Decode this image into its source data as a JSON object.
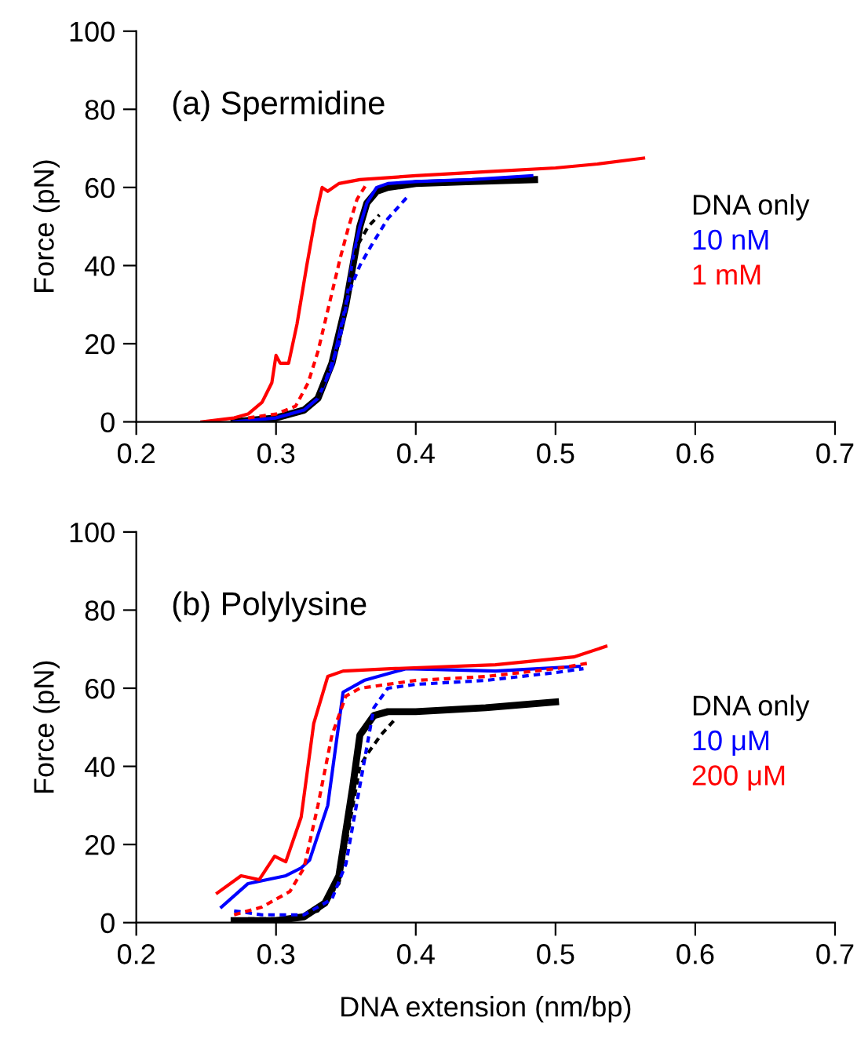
{
  "chart_data": [
    {
      "type": "line",
      "title": "(a) Spermidine",
      "ylabel": "Force (pN)",
      "xlim": [
        0.2,
        0.7
      ],
      "xticks": [
        0.2,
        0.3,
        0.4,
        0.5,
        0.6,
        0.7
      ],
      "ylim": [
        0,
        100
      ],
      "yticks": [
        0,
        20,
        40,
        60,
        80,
        100
      ],
      "legend": "right",
      "grid": false,
      "series": [
        {
          "name": "DNA only",
          "color": "#000000",
          "line_style": "solid",
          "x": [
            0.27,
            0.3,
            0.32,
            0.33,
            0.34,
            0.35,
            0.355,
            0.36,
            0.365,
            0.372,
            0.38,
            0.4,
            0.44,
            0.485
          ],
          "values": [
            0,
            1,
            3,
            6,
            15,
            30,
            40,
            50,
            56,
            59,
            60,
            61,
            61.5,
            62
          ]
        },
        {
          "name": "10 nM",
          "color": "#0000ff",
          "line_style": "solid",
          "x": [
            0.27,
            0.3,
            0.32,
            0.33,
            0.34,
            0.35,
            0.355,
            0.36,
            0.365,
            0.372,
            0.38,
            0.4,
            0.44,
            0.483
          ],
          "values": [
            0,
            1,
            3,
            6,
            14,
            30,
            42,
            50,
            56,
            60,
            61,
            61.5,
            62,
            63
          ]
        },
        {
          "name": "1 mM",
          "color": "#ff0000",
          "line_style": "solid",
          "x": [
            0.247,
            0.27,
            0.28,
            0.29,
            0.297,
            0.3,
            0.303,
            0.309,
            0.315,
            0.322,
            0.328,
            0.333,
            0.337,
            0.345,
            0.36,
            0.4,
            0.45,
            0.5,
            0.53,
            0.563
          ],
          "values": [
            0,
            1,
            2,
            5,
            10,
            17,
            15,
            15,
            25,
            40,
            52,
            60,
            59,
            61,
            62,
            63,
            64,
            65,
            66,
            67.5
          ]
        },
        {
          "color": "#000000",
          "line_style": "dashed",
          "x": [
            0.33,
            0.345,
            0.352,
            0.358,
            0.366,
            0.374
          ],
          "values": [
            6,
            20,
            35,
            45,
            50,
            53
          ]
        },
        {
          "color": "#0000ff",
          "line_style": "dashed",
          "x": [
            0.336,
            0.345,
            0.352,
            0.36,
            0.368,
            0.38,
            0.395
          ],
          "values": [
            11,
            20,
            33,
            40,
            45,
            52,
            58
          ]
        },
        {
          "color": "#ff0000",
          "line_style": "dashed",
          "x": [
            0.28,
            0.3,
            0.314,
            0.323,
            0.33,
            0.338,
            0.346,
            0.352,
            0.358,
            0.365
          ],
          "values": [
            1,
            2,
            4,
            10,
            18,
            30,
            42,
            50,
            57,
            61
          ]
        }
      ]
    },
    {
      "type": "line",
      "title": "(b) Polylysine",
      "ylabel": "Force (pN)",
      "xlabel": "DNA extension (nm/bp)",
      "xlim": [
        0.2,
        0.7
      ],
      "xticks": [
        0.2,
        0.3,
        0.4,
        0.5,
        0.6,
        0.7
      ],
      "ylim": [
        0,
        100
      ],
      "yticks": [
        0,
        20,
        40,
        60,
        80,
        100
      ],
      "legend": "right",
      "grid": false,
      "series": [
        {
          "name": "DNA only",
          "color": "#000000",
          "line_style": "solid",
          "x": [
            0.27,
            0.3,
            0.32,
            0.335,
            0.345,
            0.355,
            0.36,
            0.37,
            0.38,
            0.4,
            0.45,
            0.5
          ],
          "values": [
            0.5,
            0.5,
            1.5,
            5,
            12,
            35,
            48,
            53,
            54,
            54,
            55,
            56.5
          ]
        },
        {
          "name": "10 μM",
          "color": "#0000ff",
          "line_style": "solid",
          "x": [
            0.261,
            0.28,
            0.307,
            0.318,
            0.324,
            0.337,
            0.348,
            0.363,
            0.393,
            0.457,
            0.517
          ],
          "values": [
            4,
            10,
            12,
            14,
            16,
            30,
            59,
            62,
            65,
            64.4,
            65.6
          ]
        },
        {
          "name": "200 μM",
          "color": "#ff0000",
          "line_style": "solid",
          "x": [
            0.258,
            0.275,
            0.288,
            0.299,
            0.307,
            0.318,
            0.327,
            0.337,
            0.348,
            0.382,
            0.457,
            0.513,
            0.536
          ],
          "values": [
            7.6,
            12,
            11,
            17,
            15.6,
            27,
            51,
            63,
            64.4,
            65,
            66,
            68,
            70.7
          ]
        },
        {
          "color": "#000000",
          "line_style": "dashed",
          "x": [
            0.28,
            0.31,
            0.33,
            0.345,
            0.355,
            0.36,
            0.365,
            0.375,
            0.385
          ],
          "values": [
            1,
            1,
            3,
            10,
            30,
            40,
            43,
            48,
            52
          ]
        },
        {
          "color": "#0000ff",
          "line_style": "dashed",
          "x": [
            0.27,
            0.29,
            0.32,
            0.34,
            0.35,
            0.36,
            0.37,
            0.38,
            0.4,
            0.45,
            0.5,
            0.52
          ],
          "values": [
            3,
            2,
            2,
            6,
            15,
            35,
            55,
            60,
            61,
            62,
            64,
            65
          ]
        },
        {
          "color": "#ff0000",
          "line_style": "dashed",
          "x": [
            0.27,
            0.29,
            0.31,
            0.32,
            0.33,
            0.34,
            0.35,
            0.36,
            0.4,
            0.45,
            0.5,
            0.525
          ],
          "values": [
            2,
            4,
            8,
            14,
            30,
            48,
            58,
            60,
            62,
            63,
            65,
            66.5
          ]
        }
      ]
    }
  ]
}
